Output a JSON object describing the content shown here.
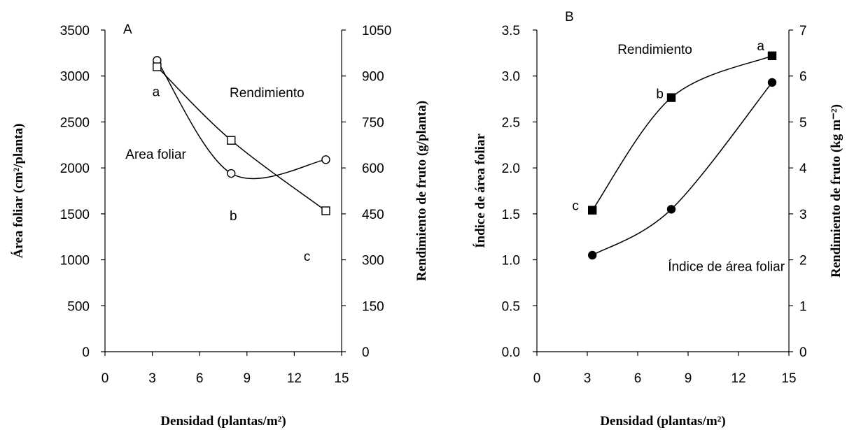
{
  "chart_data": [
    {
      "type": "line",
      "panel_label": "A",
      "xlabel": "Densidad (plantas/m²)",
      "ylabel_left": "Área foliar (cm²/planta)",
      "ylabel_right": "Rendimiento de fruto (g/planta)",
      "xlim": [
        0,
        15
      ],
      "ylim_left": [
        0,
        3500
      ],
      "ylim_right": [
        0,
        1050
      ],
      "x_ticks": [
        "0",
        "3",
        "6",
        "9",
        "12",
        "15"
      ],
      "y_left_ticks": [
        "0",
        "500",
        "1000",
        "1500",
        "2000",
        "2500",
        "3000",
        "3500"
      ],
      "y_right_ticks": [
        "0",
        "150",
        "300",
        "450",
        "600",
        "750",
        "900",
        "1050"
      ],
      "series": [
        {
          "name": "Area foliar",
          "axis": "left",
          "marker": "open-circle",
          "x": [
            3.3,
            8.0,
            14.0
          ],
          "y": [
            3170,
            1940,
            2090
          ]
        },
        {
          "name": "Rendimiento",
          "axis": "right",
          "marker": "open-square",
          "x": [
            3.3,
            8.0,
            14.0
          ],
          "y": [
            930,
            690,
            460
          ]
        }
      ],
      "annotations": [
        {
          "text": "a",
          "x": 3.0,
          "y": 2780
        },
        {
          "text": "b",
          "x": 7.9,
          "y": 1430
        },
        {
          "text": "c",
          "x": 12.6,
          "y": 990
        },
        {
          "text": "Rendimiento",
          "x": 7.9,
          "y": 2770
        },
        {
          "text": "Area foliar",
          "x": 1.3,
          "y": 2100
        }
      ]
    },
    {
      "type": "line",
      "panel_label": "B",
      "xlabel": "Densidad (plantas/m²)",
      "ylabel_left": "Índice de área foliar",
      "ylabel_right": "Rendimiento de fruto (kg m⁻²)",
      "xlim": [
        0,
        15
      ],
      "ylim_left": [
        0,
        3.5
      ],
      "ylim_right": [
        0,
        7
      ],
      "x_ticks": [
        "0",
        "3",
        "6",
        "9",
        "12",
        "15"
      ],
      "y_left_ticks": [
        "0.0",
        "0.5",
        "1.0",
        "1.5",
        "2.0",
        "2.5",
        "3.0",
        "3.5"
      ],
      "y_right_ticks": [
        "0",
        "1",
        "2",
        "3",
        "4",
        "5",
        "6",
        "7"
      ],
      "series": [
        {
          "name": "Rendimiento",
          "axis": "right",
          "marker": "filled-square",
          "x": [
            3.3,
            8.0,
            14.0
          ],
          "y": [
            3.08,
            5.53,
            6.44
          ]
        },
        {
          "name": "Índice de área foliar",
          "axis": "left",
          "marker": "filled-circle",
          "x": [
            3.3,
            8.0,
            14.0
          ],
          "y": [
            1.05,
            1.55,
            2.93
          ]
        }
      ],
      "annotations": [
        {
          "text": "a",
          "x": 13.1,
          "y": 3.28
        },
        {
          "text": "b",
          "x": 7.1,
          "y": 2.76
        },
        {
          "text": "c",
          "x": 2.1,
          "y": 1.54
        },
        {
          "text": "Rendimiento",
          "x": 4.8,
          "y": 3.24
        },
        {
          "text": "Índice de área foliar",
          "x": 7.8,
          "y": 0.88
        }
      ]
    }
  ]
}
